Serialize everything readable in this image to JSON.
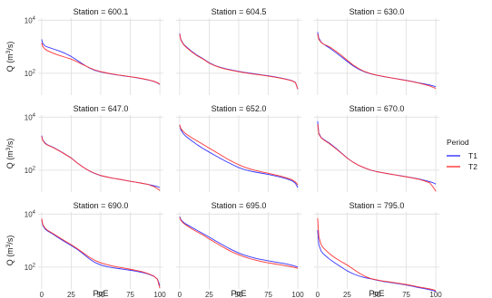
{
  "chart_data": {
    "type": "line",
    "facet_label": "Station",
    "xlabel": "PoE",
    "ylabel_main": "Q (m",
    "ylabel_sup": "3",
    "ylabel_end": "/s)",
    "y_scale": "log10",
    "ylim": [
      15,
      12000
    ],
    "xlim": [
      -3,
      103
    ],
    "x_ticks": [
      0,
      25,
      50,
      75,
      100
    ],
    "y_ticks": [
      {
        "value": 100,
        "base": "10",
        "exp": "2"
      },
      {
        "value": 10000,
        "base": "10",
        "exp": "4"
      }
    ],
    "grid": true,
    "legend_position": "right",
    "legend_title": "Period",
    "series": [
      {
        "name": "T1",
        "color": "#3333ff"
      },
      {
        "name": "T2",
        "color": "#ff3333"
      }
    ],
    "x": [
      0,
      1,
      3,
      5,
      10,
      15,
      20,
      25,
      30,
      35,
      40,
      45,
      50,
      55,
      60,
      65,
      70,
      75,
      80,
      85,
      90,
      95,
      98,
      100
    ],
    "panels": [
      {
        "station": "Station = 600.1",
        "T1": [
          1900,
          1300,
          1060,
          970,
          820,
          690,
          560,
          430,
          310,
          220,
          160,
          128,
          112,
          101,
          92,
          85,
          79,
          74,
          68,
          62,
          56,
          49,
          43,
          38
        ],
        "T2": [
          1400,
          1000,
          800,
          710,
          560,
          470,
          400,
          340,
          270,
          210,
          165,
          133,
          115,
          103,
          94,
          86,
          80,
          74,
          69,
          63,
          57,
          50,
          44,
          39
        ]
      },
      {
        "station": "Station = 604.5",
        "T1": [
          3200,
          1900,
          1300,
          1050,
          680,
          470,
          350,
          250,
          195,
          165,
          145,
          130,
          118,
          108,
          100,
          93,
          86,
          80,
          74,
          67,
          60,
          53,
          45,
          25
        ],
        "T2": [
          3000,
          1800,
          1250,
          1000,
          650,
          450,
          340,
          240,
          190,
          160,
          140,
          126,
          114,
          105,
          97,
          90,
          84,
          78,
          72,
          66,
          59,
          52,
          44,
          25
        ]
      },
      {
        "station": "Station = 630.0",
        "T1": [
          3600,
          2100,
          1500,
          1250,
          900,
          620,
          420,
          280,
          190,
          140,
          112,
          95,
          84,
          76,
          70,
          64,
          59,
          54,
          49,
          44,
          40,
          36,
          33,
          31
        ],
        "T2": [
          3000,
          1900,
          1450,
          1250,
          1000,
          700,
          480,
          310,
          205,
          148,
          115,
          97,
          85,
          77,
          70,
          64,
          58,
          53,
          48,
          43,
          38,
          33,
          29,
          27
        ]
      },
      {
        "station": "Station = 647.0",
        "T1": [
          2000,
          1350,
          1050,
          900,
          720,
          540,
          400,
          290,
          190,
          130,
          95,
          75,
          62,
          55,
          50,
          46,
          42,
          38,
          35,
          32,
          29,
          26,
          24,
          22
        ],
        "T2": [
          1900,
          1300,
          1000,
          880,
          700,
          530,
          390,
          285,
          188,
          130,
          96,
          76,
          63,
          56,
          50,
          46,
          42,
          38,
          35,
          32,
          29,
          24,
          20,
          17
        ]
      },
      {
        "station": "Station = 652.0",
        "T1": [
          5000,
          3300,
          2400,
          1950,
          1300,
          900,
          650,
          480,
          360,
          270,
          205,
          160,
          125,
          105,
          92,
          83,
          76,
          69,
          62,
          55,
          48,
          40,
          32,
          22
        ],
        "T2": [
          5200,
          3700,
          2900,
          2400,
          1700,
          1250,
          920,
          680,
          500,
          370,
          270,
          205,
          160,
          130,
          110,
          96,
          85,
          76,
          68,
          60,
          52,
          44,
          36,
          28
        ]
      },
      {
        "station": "Station = 670.0",
        "T1": [
          7000,
          2500,
          1700,
          1450,
          1050,
          700,
          450,
          290,
          200,
          150,
          120,
          100,
          88,
          80,
          73,
          67,
          62,
          57,
          52,
          47,
          42,
          37,
          33,
          30
        ],
        "T2": [
          5500,
          2300,
          1650,
          1400,
          1000,
          670,
          440,
          285,
          200,
          150,
          121,
          101,
          88,
          80,
          73,
          67,
          61,
          56,
          51,
          46,
          40,
          33,
          22,
          16
        ]
      },
      {
        "station": "Station = 690.0",
        "T1": [
          6000,
          3700,
          2700,
          2300,
          1700,
          1200,
          880,
          650,
          470,
          320,
          210,
          150,
          120,
          105,
          95,
          88,
          82,
          76,
          70,
          63,
          55,
          45,
          35,
          20
        ],
        "T2": [
          6800,
          4000,
          2900,
          2450,
          1800,
          1300,
          950,
          700,
          500,
          350,
          240,
          180,
          145,
          125,
          110,
          100,
          91,
          83,
          75,
          67,
          57,
          46,
          34,
          16
        ]
      },
      {
        "station": "Station = 695.0",
        "T1": [
          8000,
          6200,
          5000,
          4300,
          3200,
          2400,
          1800,
          1350,
          1000,
          750,
          560,
          430,
          340,
          280,
          240,
          210,
          190,
          172,
          158,
          145,
          132,
          118,
          108,
          100
        ],
        "T2": [
          7500,
          5800,
          4600,
          3900,
          2800,
          2100,
          1600,
          1150,
          850,
          630,
          470,
          360,
          290,
          240,
          205,
          180,
          160,
          145,
          133,
          122,
          112,
          102,
          95,
          90
        ]
      },
      {
        "station": "Station = 795.0",
        "T1": [
          2500,
          700,
          400,
          310,
          200,
          140,
          100,
          72,
          56,
          46,
          40,
          36,
          32,
          29,
          27,
          25,
          23,
          21,
          19,
          17,
          15.5,
          14,
          13,
          12
        ],
        "T2": [
          7000,
          1400,
          700,
          520,
          320,
          220,
          160,
          120,
          85,
          60,
          45,
          37,
          33,
          30,
          28,
          26,
          24,
          22,
          20,
          18,
          16.5,
          15,
          14,
          13
        ]
      }
    ]
  }
}
